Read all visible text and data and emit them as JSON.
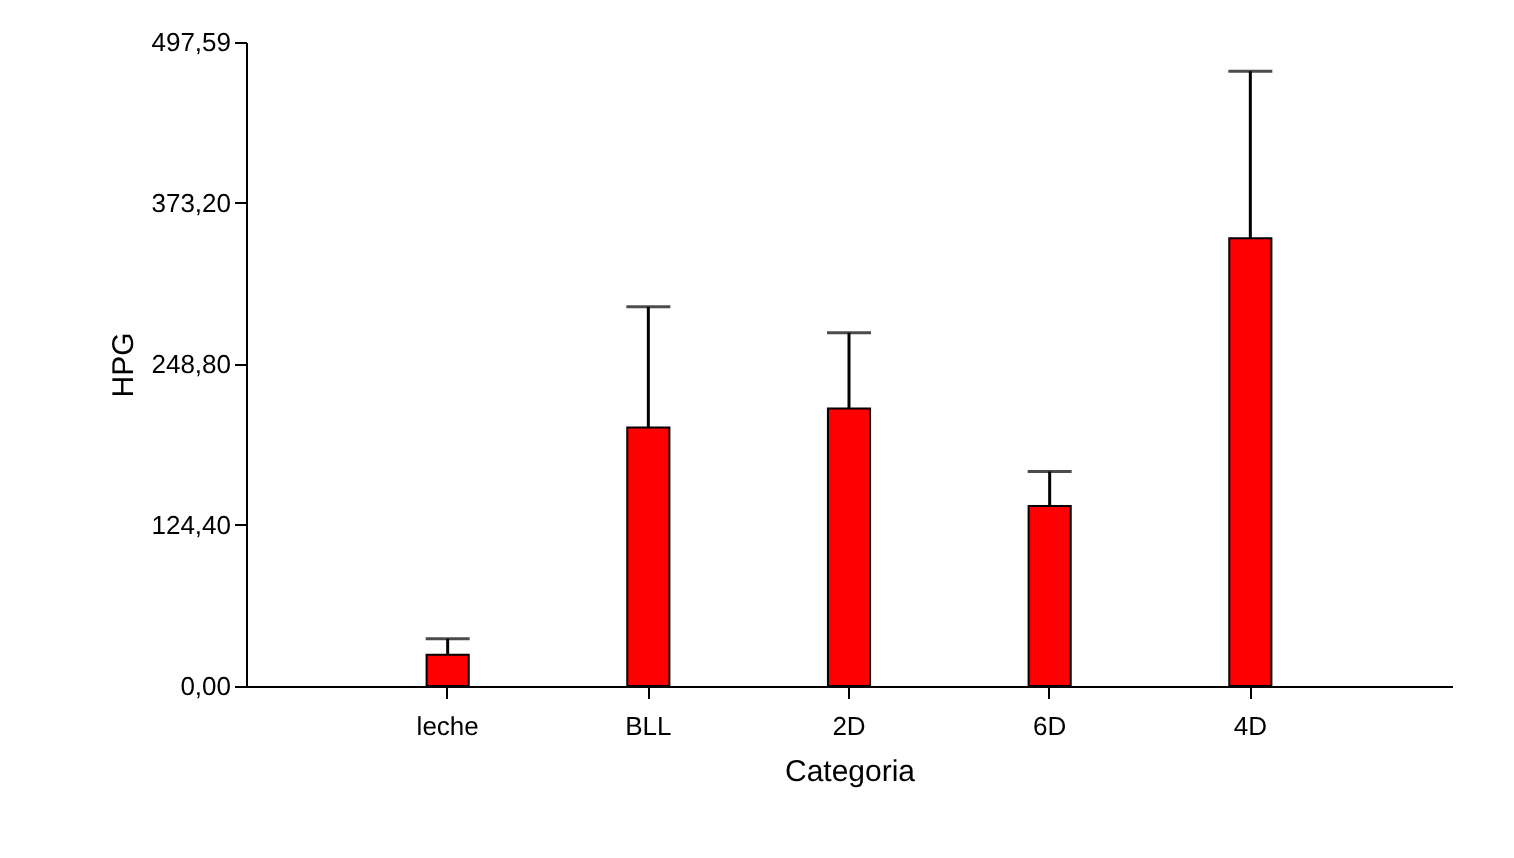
{
  "chart_data": {
    "type": "bar",
    "xlabel": "Categoria",
    "ylabel": "HPG",
    "categories": [
      "leche",
      "BLL",
      "2D",
      "6D",
      "4D"
    ],
    "values": [
      24.1,
      199.7,
      214.5,
      139,
      346
    ],
    "errors": [
      [
        24.1,
        36.5
      ],
      [
        199.7,
        293
      ],
      [
        214.5,
        273
      ],
      [
        139,
        165.7
      ],
      [
        346,
        475
      ]
    ],
    "color": "#ff0000",
    "ylim": [
      0,
      497.59
    ],
    "yticks": [
      {
        "value": 0,
        "label": "0,00"
      },
      {
        "value": 124.4,
        "label": "124,40"
      },
      {
        "value": 248.8,
        "label": "248,80"
      },
      {
        "value": 373.2,
        "label": "373,20"
      },
      {
        "value": 497.59,
        "label": "497,59"
      }
    ],
    "grid": false
  }
}
